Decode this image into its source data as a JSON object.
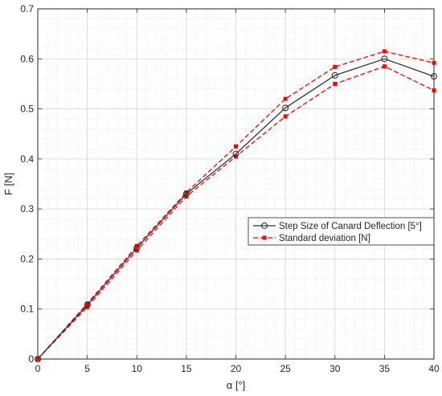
{
  "chart_data": {
    "type": "line",
    "xlabel": "α [°]",
    "ylabel": "F [N]",
    "xlim": [
      0,
      40
    ],
    "ylim": [
      0,
      0.7
    ],
    "xticks": [
      0,
      5,
      10,
      15,
      20,
      25,
      30,
      35,
      40
    ],
    "yticks": [
      0,
      0.1,
      0.2,
      0.3,
      0.4,
      0.5,
      0.6,
      0.7
    ],
    "xtick_labels": [
      "0",
      "5",
      "10",
      "15",
      "20",
      "25",
      "30",
      "35",
      "40"
    ],
    "ytick_labels": [
      "0",
      "0.1",
      "0.2",
      "0.3",
      "0.4",
      "0.5",
      "0.6",
      "0.7"
    ],
    "grid": true,
    "minor_grid": true,
    "legend_position": "center-right",
    "x": [
      0,
      5,
      10,
      15,
      20,
      25,
      30,
      35,
      40
    ],
    "series": [
      {
        "name": "Step Size of Canard Deflection [5°]",
        "color": "#333333",
        "line_style": "solid",
        "marker": "circle",
        "values": [
          0,
          0.108,
          0.222,
          0.33,
          0.41,
          0.502,
          0.567,
          0.6,
          0.565
        ]
      },
      {
        "name": "Standard deviation [N]",
        "color": "#ff0000",
        "line_style": "dashed",
        "marker": "square",
        "values": [
          0,
          0.111,
          0.226,
          0.333,
          0.425,
          0.52,
          0.584,
          0.615,
          0.592
        ]
      },
      {
        "name": "",
        "color": "#ff0000",
        "line_style": "dashed",
        "marker": "square",
        "values": [
          0,
          0.104,
          0.217,
          0.325,
          0.405,
          0.485,
          0.55,
          0.585,
          0.537
        ]
      }
    ]
  }
}
